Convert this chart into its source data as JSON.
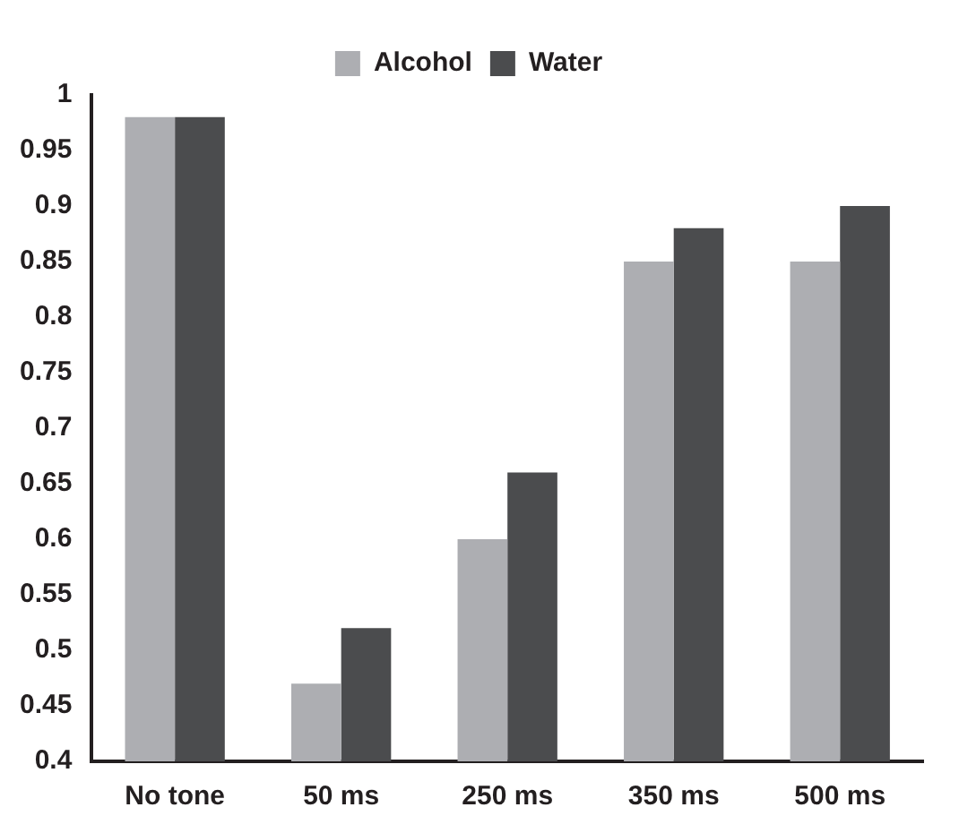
{
  "chart_data": {
    "type": "bar",
    "categories": [
      "No tone",
      "50 ms",
      "250 ms",
      "350 ms",
      "500 ms"
    ],
    "series": [
      {
        "name": "Alcohol",
        "color": "#adaeb2",
        "values": [
          0.98,
          0.47,
          0.6,
          0.85,
          0.85
        ]
      },
      {
        "name": "Water",
        "color": "#4b4c4e",
        "values": [
          0.98,
          0.52,
          0.66,
          0.88,
          0.9
        ]
      }
    ],
    "ylim": [
      0.4,
      1
    ],
    "yticks": [
      0.4,
      0.45,
      0.5,
      0.55,
      0.6,
      0.65,
      0.7,
      0.75,
      0.8,
      0.85,
      0.9,
      0.95,
      1
    ],
    "grid": false,
    "legend": "top"
  }
}
